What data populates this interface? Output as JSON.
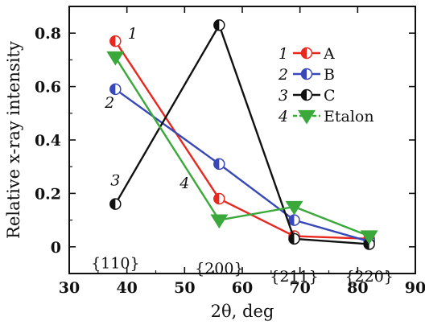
{
  "chart_data": {
    "type": "line",
    "xlabel": "2θ, deg",
    "ylabel": "Relative x-ray intensity",
    "xlim": [
      30,
      90
    ],
    "ylim": [
      -0.1,
      0.9
    ],
    "xticks": [
      30,
      40,
      50,
      60,
      70,
      80,
      90
    ],
    "yticks": [
      0,
      0.2,
      0.4,
      0.6,
      0.8
    ],
    "xtick_labels": [
      "30",
      "40",
      "50",
      "60",
      "70",
      "80",
      "90"
    ],
    "ytick_labels": [
      "0",
      "0.2",
      "0.4",
      "0.6",
      "0.8"
    ],
    "grid": false,
    "legend_position": "top-right",
    "series": [
      {
        "name": "A",
        "number": "1",
        "color": "#e8281e",
        "marker": "half-circle",
        "x": [
          38,
          56,
          69,
          82
        ],
        "y": [
          0.77,
          0.18,
          0.04,
          0.03
        ]
      },
      {
        "name": "B",
        "number": "2",
        "color": "#3848b8",
        "marker": "half-circle",
        "x": [
          38,
          56,
          69,
          82
        ],
        "y": [
          0.59,
          0.31,
          0.1,
          0.02
        ]
      },
      {
        "name": "C",
        "number": "3",
        "color": "#111111",
        "marker": "half-circle",
        "x": [
          38,
          56,
          69,
          82
        ],
        "y": [
          0.16,
          0.83,
          0.03,
          0.01
        ]
      },
      {
        "name": "Etalon",
        "number": "4",
        "color": "#3aa83a",
        "marker": "triangle-down",
        "x": [
          38,
          56,
          69,
          82
        ],
        "y": [
          0.71,
          0.1,
          0.15,
          0.04
        ]
      }
    ],
    "annotations": [
      {
        "text": "{110}",
        "x": 38,
        "y": -0.08
      },
      {
        "text": "{200}",
        "x": 56,
        "y": -0.1
      },
      {
        "text": "{211}",
        "x": 69,
        "y": -0.13
      },
      {
        "text": "{220}",
        "x": 82,
        "y": -0.13
      }
    ],
    "curve_numbers": [
      {
        "text": "1",
        "x": 41,
        "y": 0.78
      },
      {
        "text": "2",
        "x": 37,
        "y": 0.52
      },
      {
        "text": "3",
        "x": 38,
        "y": 0.23
      },
      {
        "text": "4",
        "x": 50,
        "y": 0.22
      }
    ]
  }
}
